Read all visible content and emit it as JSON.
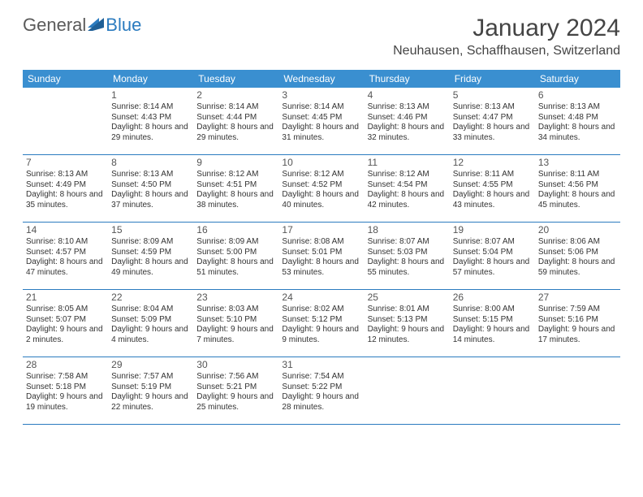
{
  "brand": {
    "word1": "General",
    "word2": "Blue",
    "logo_color": "#2b7bbf"
  },
  "title": "January 2024",
  "location": "Neuhausen, Schaffhausen, Switzerland",
  "colors": {
    "header_bg": "#3a8fd0",
    "header_text": "#ffffff",
    "divider": "#2b7bbf",
    "text": "#333333",
    "background": "#ffffff"
  },
  "day_names": [
    "Sunday",
    "Monday",
    "Tuesday",
    "Wednesday",
    "Thursday",
    "Friday",
    "Saturday"
  ],
  "first_weekday_index": 1,
  "days": [
    {
      "n": 1,
      "sunrise": "8:14 AM",
      "sunset": "4:43 PM",
      "daylight": "8 hours and 29 minutes."
    },
    {
      "n": 2,
      "sunrise": "8:14 AM",
      "sunset": "4:44 PM",
      "daylight": "8 hours and 29 minutes."
    },
    {
      "n": 3,
      "sunrise": "8:14 AM",
      "sunset": "4:45 PM",
      "daylight": "8 hours and 31 minutes."
    },
    {
      "n": 4,
      "sunrise": "8:13 AM",
      "sunset": "4:46 PM",
      "daylight": "8 hours and 32 minutes."
    },
    {
      "n": 5,
      "sunrise": "8:13 AM",
      "sunset": "4:47 PM",
      "daylight": "8 hours and 33 minutes."
    },
    {
      "n": 6,
      "sunrise": "8:13 AM",
      "sunset": "4:48 PM",
      "daylight": "8 hours and 34 minutes."
    },
    {
      "n": 7,
      "sunrise": "8:13 AM",
      "sunset": "4:49 PM",
      "daylight": "8 hours and 35 minutes."
    },
    {
      "n": 8,
      "sunrise": "8:13 AM",
      "sunset": "4:50 PM",
      "daylight": "8 hours and 37 minutes."
    },
    {
      "n": 9,
      "sunrise": "8:12 AM",
      "sunset": "4:51 PM",
      "daylight": "8 hours and 38 minutes."
    },
    {
      "n": 10,
      "sunrise": "8:12 AM",
      "sunset": "4:52 PM",
      "daylight": "8 hours and 40 minutes."
    },
    {
      "n": 11,
      "sunrise": "8:12 AM",
      "sunset": "4:54 PM",
      "daylight": "8 hours and 42 minutes."
    },
    {
      "n": 12,
      "sunrise": "8:11 AM",
      "sunset": "4:55 PM",
      "daylight": "8 hours and 43 minutes."
    },
    {
      "n": 13,
      "sunrise": "8:11 AM",
      "sunset": "4:56 PM",
      "daylight": "8 hours and 45 minutes."
    },
    {
      "n": 14,
      "sunrise": "8:10 AM",
      "sunset": "4:57 PM",
      "daylight": "8 hours and 47 minutes."
    },
    {
      "n": 15,
      "sunrise": "8:09 AM",
      "sunset": "4:59 PM",
      "daylight": "8 hours and 49 minutes."
    },
    {
      "n": 16,
      "sunrise": "8:09 AM",
      "sunset": "5:00 PM",
      "daylight": "8 hours and 51 minutes."
    },
    {
      "n": 17,
      "sunrise": "8:08 AM",
      "sunset": "5:01 PM",
      "daylight": "8 hours and 53 minutes."
    },
    {
      "n": 18,
      "sunrise": "8:07 AM",
      "sunset": "5:03 PM",
      "daylight": "8 hours and 55 minutes."
    },
    {
      "n": 19,
      "sunrise": "8:07 AM",
      "sunset": "5:04 PM",
      "daylight": "8 hours and 57 minutes."
    },
    {
      "n": 20,
      "sunrise": "8:06 AM",
      "sunset": "5:06 PM",
      "daylight": "8 hours and 59 minutes."
    },
    {
      "n": 21,
      "sunrise": "8:05 AM",
      "sunset": "5:07 PM",
      "daylight": "9 hours and 2 minutes."
    },
    {
      "n": 22,
      "sunrise": "8:04 AM",
      "sunset": "5:09 PM",
      "daylight": "9 hours and 4 minutes."
    },
    {
      "n": 23,
      "sunrise": "8:03 AM",
      "sunset": "5:10 PM",
      "daylight": "9 hours and 7 minutes."
    },
    {
      "n": 24,
      "sunrise": "8:02 AM",
      "sunset": "5:12 PM",
      "daylight": "9 hours and 9 minutes."
    },
    {
      "n": 25,
      "sunrise": "8:01 AM",
      "sunset": "5:13 PM",
      "daylight": "9 hours and 12 minutes."
    },
    {
      "n": 26,
      "sunrise": "8:00 AM",
      "sunset": "5:15 PM",
      "daylight": "9 hours and 14 minutes."
    },
    {
      "n": 27,
      "sunrise": "7:59 AM",
      "sunset": "5:16 PM",
      "daylight": "9 hours and 17 minutes."
    },
    {
      "n": 28,
      "sunrise": "7:58 AM",
      "sunset": "5:18 PM",
      "daylight": "9 hours and 19 minutes."
    },
    {
      "n": 29,
      "sunrise": "7:57 AM",
      "sunset": "5:19 PM",
      "daylight": "9 hours and 22 minutes."
    },
    {
      "n": 30,
      "sunrise": "7:56 AM",
      "sunset": "5:21 PM",
      "daylight": "9 hours and 25 minutes."
    },
    {
      "n": 31,
      "sunrise": "7:54 AM",
      "sunset": "5:22 PM",
      "daylight": "9 hours and 28 minutes."
    }
  ],
  "labels": {
    "sunrise": "Sunrise:",
    "sunset": "Sunset:",
    "daylight": "Daylight:"
  }
}
